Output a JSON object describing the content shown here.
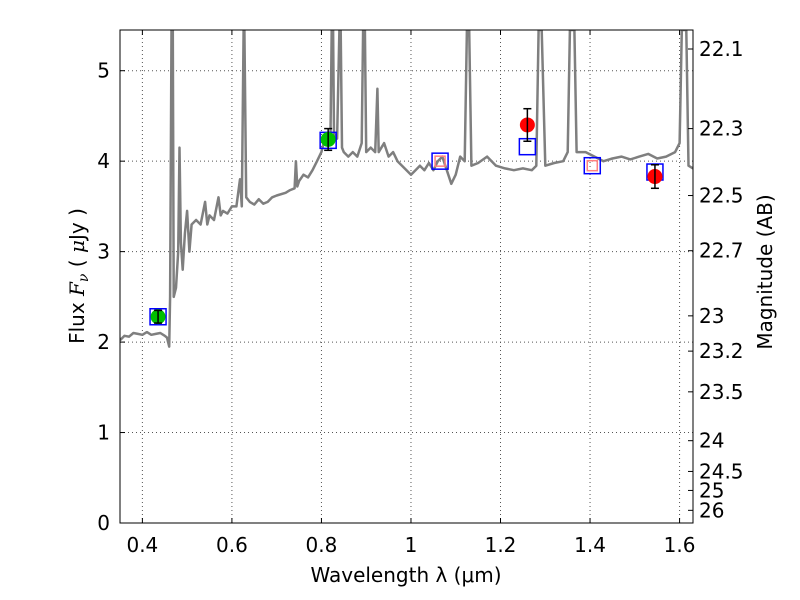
{
  "chart_data": {
    "type": "scatter",
    "xlabel": "Wavelength  λ (μm)",
    "ylabel_left": {
      "prefix": "Flux  ",
      "var": "F",
      "sub": "ν",
      "unit_open": "  (  ",
      "unit_mu": "μ",
      "unit": "Jy  )"
    },
    "ylabel_right": "Magnitude (AB)",
    "xlim": [
      0.35,
      1.63
    ],
    "ylim": [
      0,
      5.45
    ],
    "grid": true,
    "x_ticks": [
      {
        "value": 0.4,
        "label": "0.4"
      },
      {
        "value": 0.6,
        "label": "0.6"
      },
      {
        "value": 0.8,
        "label": "0.8"
      },
      {
        "value": 1.0,
        "label": "1"
      },
      {
        "value": 1.2,
        "label": "1.2"
      },
      {
        "value": 1.4,
        "label": "1.4"
      },
      {
        "value": 1.6,
        "label": "1.6"
      }
    ],
    "y_ticks": [
      {
        "value": 0,
        "label": "0"
      },
      {
        "value": 1,
        "label": "1"
      },
      {
        "value": 2,
        "label": "2"
      },
      {
        "value": 3,
        "label": "3"
      },
      {
        "value": 4,
        "label": "4"
      },
      {
        "value": 5,
        "label": "5"
      }
    ],
    "mag_ticks": [
      {
        "flux": 5.24,
        "label": "22.1"
      },
      {
        "flux": 4.36,
        "label": "22.3"
      },
      {
        "flux": 3.62,
        "label": "22.5"
      },
      {
        "flux": 3.01,
        "label": "22.7"
      },
      {
        "flux": 2.29,
        "label": "23"
      },
      {
        "flux": 1.9,
        "label": "23.2"
      },
      {
        "flux": 1.45,
        "label": "23.5"
      },
      {
        "flux": 0.91,
        "label": "24"
      },
      {
        "flux": 0.57,
        "label": "24.5"
      },
      {
        "flux": 0.36,
        "label": "25"
      },
      {
        "flux": 0.14,
        "label": "26"
      }
    ],
    "colors": {
      "spectrum": "#7f7f7f",
      "green": "#00bf00",
      "red": "#ff0000",
      "blue": "#0000ff",
      "pink": "#ff8080",
      "grid": "#555555"
    },
    "spectrum": {
      "name": "model-spectrum",
      "points": [
        [
          0.35,
          2.02
        ],
        [
          0.36,
          2.07
        ],
        [
          0.37,
          2.06
        ],
        [
          0.38,
          2.1
        ],
        [
          0.39,
          2.09
        ],
        [
          0.4,
          2.08
        ],
        [
          0.41,
          2.11
        ],
        [
          0.42,
          2.08
        ],
        [
          0.43,
          2.09
        ],
        [
          0.44,
          2.1
        ],
        [
          0.45,
          2.07
        ],
        [
          0.455,
          2.05
        ],
        [
          0.46,
          1.95
        ],
        [
          0.462,
          2.5
        ],
        [
          0.465,
          5.45
        ],
        [
          0.468,
          5.45
        ],
        [
          0.47,
          2.5
        ],
        [
          0.475,
          2.6
        ],
        [
          0.48,
          3.0
        ],
        [
          0.483,
          4.15
        ],
        [
          0.486,
          3.1
        ],
        [
          0.49,
          2.8
        ],
        [
          0.495,
          3.2
        ],
        [
          0.5,
          3.45
        ],
        [
          0.505,
          3.0
        ],
        [
          0.51,
          3.3
        ],
        [
          0.52,
          3.35
        ],
        [
          0.53,
          3.3
        ],
        [
          0.54,
          3.55
        ],
        [
          0.545,
          3.3
        ],
        [
          0.55,
          3.4
        ],
        [
          0.56,
          3.35
        ],
        [
          0.57,
          3.6
        ],
        [
          0.575,
          3.4
        ],
        [
          0.58,
          3.45
        ],
        [
          0.59,
          3.42
        ],
        [
          0.6,
          3.5
        ],
        [
          0.61,
          3.5
        ],
        [
          0.618,
          3.8
        ],
        [
          0.622,
          3.5
        ],
        [
          0.626,
          5.45
        ],
        [
          0.628,
          5.45
        ],
        [
          0.632,
          3.6
        ],
        [
          0.64,
          3.55
        ],
        [
          0.65,
          3.52
        ],
        [
          0.66,
          3.58
        ],
        [
          0.67,
          3.53
        ],
        [
          0.68,
          3.55
        ],
        [
          0.69,
          3.6
        ],
        [
          0.7,
          3.62
        ],
        [
          0.72,
          3.65
        ],
        [
          0.73,
          3.68
        ],
        [
          0.74,
          3.7
        ],
        [
          0.743,
          4.0
        ],
        [
          0.746,
          3.72
        ],
        [
          0.75,
          3.78
        ],
        [
          0.76,
          3.85
        ],
        [
          0.77,
          3.82
        ],
        [
          0.78,
          3.9
        ],
        [
          0.79,
          4.0
        ],
        [
          0.8,
          4.1
        ],
        [
          0.805,
          4.2
        ],
        [
          0.81,
          4.3
        ],
        [
          0.815,
          4.25
        ],
        [
          0.82,
          4.2
        ],
        [
          0.823,
          5.45
        ],
        [
          0.826,
          5.45
        ],
        [
          0.828,
          4.3
        ],
        [
          0.835,
          4.25
        ],
        [
          0.84,
          5.45
        ],
        [
          0.843,
          5.45
        ],
        [
          0.846,
          4.15
        ],
        [
          0.85,
          4.1
        ],
        [
          0.86,
          4.05
        ],
        [
          0.87,
          4.1
        ],
        [
          0.88,
          4.05
        ],
        [
          0.89,
          4.2
        ],
        [
          0.893,
          5.45
        ],
        [
          0.897,
          5.45
        ],
        [
          0.9,
          4.1
        ],
        [
          0.91,
          4.15
        ],
        [
          0.92,
          4.1
        ],
        [
          0.925,
          4.8
        ],
        [
          0.928,
          4.1
        ],
        [
          0.94,
          4.2
        ],
        [
          0.95,
          4.05
        ],
        [
          0.96,
          4.1
        ],
        [
          0.97,
          4.0
        ],
        [
          0.98,
          3.95
        ],
        [
          0.99,
          3.9
        ],
        [
          1.0,
          3.85
        ],
        [
          1.01,
          3.9
        ],
        [
          1.02,
          3.95
        ],
        [
          1.03,
          3.9
        ],
        [
          1.04,
          3.98
        ],
        [
          1.05,
          3.9
        ],
        [
          1.06,
          4.0
        ],
        [
          1.07,
          4.05
        ],
        [
          1.08,
          3.9
        ],
        [
          1.09,
          3.75
        ],
        [
          1.1,
          3.85
        ],
        [
          1.11,
          4.05
        ],
        [
          1.12,
          4.0
        ],
        [
          1.125,
          5.45
        ],
        [
          1.13,
          5.45
        ],
        [
          1.135,
          3.95
        ],
        [
          1.15,
          3.98
        ],
        [
          1.17,
          4.05
        ],
        [
          1.19,
          3.95
        ],
        [
          1.21,
          3.92
        ],
        [
          1.23,
          3.9
        ],
        [
          1.25,
          3.92
        ],
        [
          1.27,
          3.9
        ],
        [
          1.28,
          3.95
        ],
        [
          1.285,
          5.45
        ],
        [
          1.292,
          5.45
        ],
        [
          1.3,
          3.95
        ],
        [
          1.32,
          3.98
        ],
        [
          1.34,
          4.0
        ],
        [
          1.35,
          4.1
        ],
        [
          1.355,
          5.45
        ],
        [
          1.365,
          5.45
        ],
        [
          1.37,
          4.1
        ],
        [
          1.39,
          4.1
        ],
        [
          1.41,
          4.05
        ],
        [
          1.43,
          4.0
        ],
        [
          1.45,
          4.03
        ],
        [
          1.47,
          4.05
        ],
        [
          1.49,
          4.02
        ],
        [
          1.51,
          4.05
        ],
        [
          1.53,
          4.08
        ],
        [
          1.55,
          4.03
        ],
        [
          1.57,
          4.05
        ],
        [
          1.59,
          4.1
        ],
        [
          1.6,
          4.2
        ],
        [
          1.605,
          5.45
        ],
        [
          1.615,
          5.45
        ],
        [
          1.62,
          3.95
        ],
        [
          1.63,
          3.92
        ]
      ]
    },
    "series": [
      {
        "name": "observed-green",
        "marker": "circle",
        "color": "green",
        "points": [
          {
            "x": 0.435,
            "y": 2.28,
            "err": 0.07
          },
          {
            "x": 0.815,
            "y": 4.24,
            "err": 0.12
          }
        ]
      },
      {
        "name": "observed-red",
        "marker": "circle",
        "color": "red",
        "points": [
          {
            "x": 1.26,
            "y": 4.4,
            "err": 0.18
          },
          {
            "x": 1.545,
            "y": 3.83,
            "err": 0.13
          }
        ]
      },
      {
        "name": "model-blue",
        "marker": "square",
        "color": "blue",
        "points": [
          {
            "x": 0.435,
            "y": 2.28
          },
          {
            "x": 0.815,
            "y": 4.23
          },
          {
            "x": 1.065,
            "y": 4.0
          },
          {
            "x": 1.26,
            "y": 4.16
          },
          {
            "x": 1.405,
            "y": 3.95
          },
          {
            "x": 1.545,
            "y": 3.88
          }
        ]
      },
      {
        "name": "model-pink",
        "marker": "square-small",
        "color": "pink",
        "points": [
          {
            "x": 1.065,
            "y": 4.0
          },
          {
            "x": 1.405,
            "y": 3.95
          }
        ]
      }
    ]
  }
}
